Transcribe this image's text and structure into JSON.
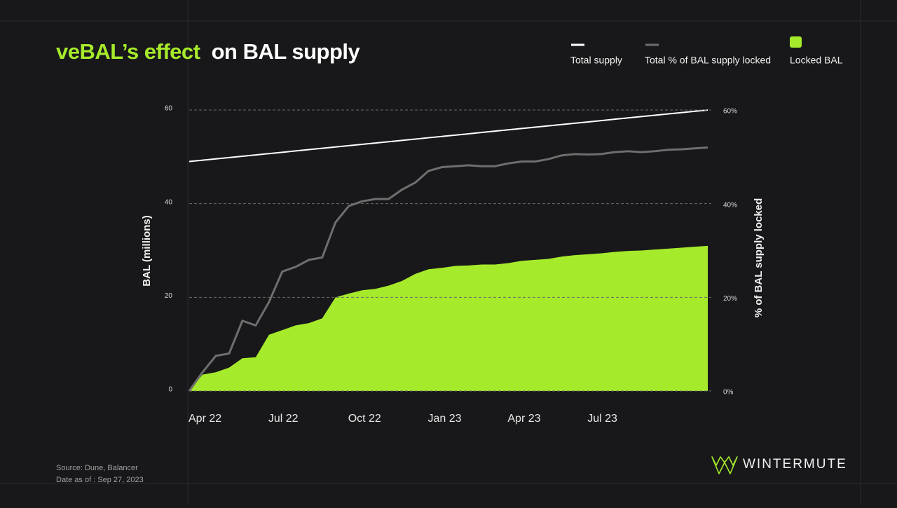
{
  "chart_data": {
    "type": "combo",
    "title": [
      "veBAL’s effect",
      "on BAL supply"
    ],
    "title_colors": [
      "#a6eb2b",
      "#ffffff"
    ],
    "ylabel": "BAL (millions)",
    "y2label": "% of BAL supply locked",
    "categories": [
      "Apr 22",
      null,
      null,
      null,
      null,
      null,
      "Jul 22",
      null,
      null,
      null,
      null,
      null,
      "Oct 22",
      null,
      null,
      null,
      null,
      null,
      "Jan 23",
      null,
      null,
      null,
      null,
      null,
      "Apr 23",
      null,
      null,
      null,
      null,
      null,
      "Jul 23",
      null,
      null,
      null,
      null,
      null,
      null,
      null,
      null,
      null
    ],
    "ylim": [
      0,
      60
    ],
    "yticks": [
      0,
      20,
      40,
      60
    ],
    "y2lim": [
      0,
      60
    ],
    "y2ticks": [
      {
        "value": 0,
        "label": "0%"
      },
      {
        "value": 20,
        "label": "20%"
      },
      {
        "value": 40,
        "label": "40%"
      },
      {
        "value": 60,
        "label": "60%"
      }
    ],
    "grid": true,
    "series": [
      {
        "name": "Total supply",
        "type": "line",
        "color": "#ffffff",
        "values": [
          49,
          49.28,
          49.56,
          49.85,
          50.13,
          50.41,
          50.69,
          50.97,
          51.26,
          51.54,
          51.82,
          52.1,
          52.38,
          52.67,
          52.95,
          53.23,
          53.51,
          53.79,
          54.08,
          54.36,
          54.64,
          54.92,
          55.21,
          55.49,
          55.77,
          56.05,
          56.33,
          56.62,
          56.9,
          57.18,
          57.46,
          57.74,
          58.03,
          58.31,
          58.59,
          58.87,
          59.15,
          59.44,
          59.72,
          60
        ]
      },
      {
        "name": "Total % of BAL supply locked",
        "type": "line",
        "axis": "y2",
        "color": "#6e6e6e",
        "values": [
          0,
          4,
          7.5,
          8,
          15,
          14,
          19,
          25.5,
          26.5,
          28,
          28.5,
          36,
          39.5,
          40.5,
          41,
          41,
          43,
          44.5,
          47,
          47.8,
          48,
          48.2,
          48,
          48,
          48.6,
          49,
          49,
          49.5,
          50.3,
          50.6,
          50.5,
          50.6,
          51,
          51.2,
          51,
          51.2,
          51.5,
          51.6,
          51.8,
          52
        ]
      },
      {
        "name": "Locked BAL",
        "type": "area",
        "color": "#a6eb2b",
        "values": [
          0,
          3.5,
          4,
          5,
          7,
          7.2,
          12,
          13,
          14,
          14.5,
          15.5,
          20,
          20.8,
          21.5,
          21.8,
          22.5,
          23.5,
          25,
          26,
          26.3,
          26.7,
          26.8,
          27,
          27,
          27.3,
          27.8,
          28,
          28.2,
          28.7,
          29,
          29.2,
          29.4,
          29.7,
          29.9,
          30,
          30.2,
          30.4,
          30.6,
          30.8,
          31
        ]
      }
    ]
  },
  "footer": {
    "source": "Source: Dune, Balancer",
    "date": "Date as of : Sep 27, 2023",
    "brand": "WINTERMUTE"
  }
}
